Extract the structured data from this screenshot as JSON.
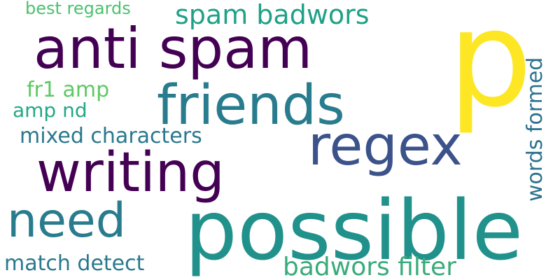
{
  "wordcloud": {
    "words": [
      {
        "text": "p",
        "color": "#fde725"
      },
      {
        "text": "possible",
        "color": "#21918c"
      },
      {
        "text": "anti spam",
        "color": "#440154"
      },
      {
        "text": "friends",
        "color": "#287c8e"
      },
      {
        "text": "regex",
        "color": "#3b528b"
      },
      {
        "text": "writing",
        "color": "#440154"
      },
      {
        "text": "need",
        "color": "#287c8e"
      },
      {
        "text": "spam badwors",
        "color": "#1fa187"
      },
      {
        "text": "badwors filter",
        "color": "#3aab7a"
      },
      {
        "text": "words formed",
        "color": "#2c728e"
      },
      {
        "text": "match detect",
        "color": "#2a788e"
      },
      {
        "text": "mixed characters",
        "color": "#2a788e"
      },
      {
        "text": "best regards",
        "color": "#4ac16d"
      },
      {
        "text": "fr1 amp",
        "color": "#5ec962"
      },
      {
        "text": "amp nd",
        "color": "#22a884"
      }
    ]
  }
}
